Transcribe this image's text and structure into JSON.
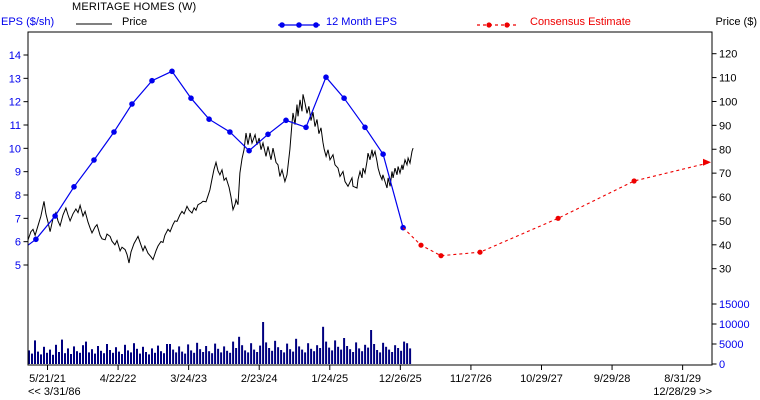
{
  "header": {
    "title": "MERITAGE HOMES (W)",
    "left_axis_label": "EPS ($/sh)",
    "right_axis_label": "Price ($)",
    "legend": [
      {
        "label": "Price",
        "color": "#000000",
        "style": "solid-line"
      },
      {
        "label": "12 Month EPS",
        "color": "#0000EE",
        "style": "line-with-dots"
      },
      {
        "label": "Consensus Estimate",
        "color": "#EE0000",
        "style": "dashed-with-dots"
      }
    ]
  },
  "nav": {
    "left": "<< 3/31/86",
    "right": "12/28/29 >>"
  },
  "colors": {
    "eps_blue": "#0000EE",
    "consensus_red": "#EE0000",
    "price_black": "#000000",
    "volume_navy": "#000080",
    "axis_black": "#000000"
  },
  "chart_data": {
    "type": "line",
    "title": "MERITAGE HOMES (W)",
    "x_axis": {
      "tick_labels": [
        "5/21/21",
        "4/22/22",
        "3/24/23",
        "2/23/24",
        "1/24/25",
        "12/26/25",
        "11/27/26",
        "10/29/27",
        "9/29/28",
        "8/31/29"
      ],
      "unit": "weeks",
      "weeks_per_tick": 48
    },
    "y_left": {
      "label": "EPS ($/sh)",
      "ticks": [
        5,
        6,
        7,
        8,
        9,
        10,
        11,
        12,
        13,
        14
      ],
      "range": [
        5,
        14
      ]
    },
    "y_right_price": {
      "label": "Price ($)",
      "ticks": [
        30,
        40,
        50,
        60,
        70,
        80,
        90,
        100,
        110,
        120
      ],
      "range": [
        30,
        120
      ]
    },
    "y_right_volume": {
      "ticks": [
        0,
        5000,
        10000,
        15000
      ],
      "range": [
        0,
        15000
      ]
    },
    "series": {
      "price": {
        "name": "Price",
        "axis": "price",
        "points": [
          [
            0,
            42
          ],
          [
            2,
            45.5
          ],
          [
            3.4,
            46.5
          ],
          [
            4.8,
            44
          ],
          [
            6.8,
            48
          ],
          [
            8.8,
            52
          ],
          [
            10.9,
            58.2
          ],
          [
            12.2,
            53
          ],
          [
            13.6,
            49.5
          ],
          [
            15,
            45.5
          ],
          [
            17,
            51
          ],
          [
            19,
            53.5
          ],
          [
            20.4,
            50
          ],
          [
            21.8,
            48
          ],
          [
            23.8,
            52.5
          ],
          [
            25.8,
            55.4
          ],
          [
            27.2,
            52.5
          ],
          [
            28.6,
            50
          ],
          [
            30.6,
            53
          ],
          [
            32.6,
            55
          ],
          [
            34,
            53.5
          ],
          [
            35.4,
            56.5
          ],
          [
            37.4,
            52
          ],
          [
            38.8,
            54
          ],
          [
            40.8,
            49.5
          ],
          [
            42.2,
            47
          ],
          [
            43.5,
            45
          ],
          [
            45.6,
            47.5
          ],
          [
            46.9,
            48.4
          ],
          [
            49,
            44
          ],
          [
            50.3,
            42.5
          ],
          [
            52.4,
            42.1
          ],
          [
            53.7,
            44.5
          ],
          [
            55.8,
            43.5
          ],
          [
            57.1,
            41.5
          ],
          [
            59.1,
            40
          ],
          [
            60.5,
            41.8
          ],
          [
            62.6,
            37.5
          ],
          [
            63.9,
            39
          ],
          [
            66,
            38
          ],
          [
            67.3,
            36
          ],
          [
            68.7,
            32.4
          ],
          [
            70,
            37
          ],
          [
            72.1,
            40.5
          ],
          [
            73.4,
            42
          ],
          [
            74.8,
            43.5
          ],
          [
            76.2,
            41
          ],
          [
            78.2,
            37.5
          ],
          [
            79.5,
            39.5
          ],
          [
            81.6,
            36.5
          ],
          [
            83.6,
            35
          ],
          [
            85,
            33.8
          ],
          [
            87,
            37.5
          ],
          [
            88.4,
            39.5
          ],
          [
            90.4,
            41.4
          ],
          [
            91.8,
            41
          ],
          [
            93.1,
            44
          ],
          [
            95.2,
            46.5
          ],
          [
            96.6,
            45.5
          ],
          [
            98.6,
            48.5
          ],
          [
            99.9,
            50
          ],
          [
            101.3,
            49.8
          ],
          [
            103.3,
            52.5
          ],
          [
            104.7,
            54
          ],
          [
            106.1,
            53
          ],
          [
            108.1,
            56.1
          ],
          [
            109.5,
            54.5
          ],
          [
            111.5,
            53.3
          ],
          [
            112.9,
            55.5
          ],
          [
            114.2,
            54.5
          ],
          [
            115.6,
            56.8
          ],
          [
            117.6,
            57.5
          ],
          [
            119,
            58.2
          ],
          [
            121,
            58
          ],
          [
            122.4,
            60.5
          ],
          [
            123.7,
            63
          ],
          [
            125.1,
            67.5
          ],
          [
            126.4,
            71.4
          ],
          [
            127.8,
            74.5
          ],
          [
            129.2,
            71
          ],
          [
            130.5,
            69.3
          ],
          [
            131.9,
            71.4
          ],
          [
            133.3,
            67
          ],
          [
            134.7,
            68
          ],
          [
            136.7,
            64
          ],
          [
            138,
            60
          ],
          [
            139.4,
            54.7
          ],
          [
            140.8,
            57
          ],
          [
            141.4,
            58.9
          ],
          [
            142.8,
            56.8
          ],
          [
            144.1,
            70
          ],
          [
            145.5,
            76
          ],
          [
            146.9,
            80
          ],
          [
            148.2,
            86.8
          ],
          [
            149.6,
            81.9
          ],
          [
            151,
            86.8
          ],
          [
            152.3,
            82.6
          ],
          [
            154.4,
            86.1
          ],
          [
            155.7,
            81.9
          ],
          [
            157.1,
            84.7
          ],
          [
            158.4,
            79.8
          ],
          [
            159.8,
            82.6
          ],
          [
            161.8,
            77
          ],
          [
            163.2,
            81.2
          ],
          [
            165.2,
            75.6
          ],
          [
            166.6,
            80.5
          ],
          [
            168.6,
            74.5
          ],
          [
            170,
            73.5
          ],
          [
            171.3,
            68.6
          ],
          [
            172.7,
            71.4
          ],
          [
            174.7,
            66.5
          ],
          [
            176.1,
            69.3
          ],
          [
            178.1,
            80
          ],
          [
            179.5,
            91
          ],
          [
            180.2,
            95.2
          ],
          [
            181.5,
            90.3
          ],
          [
            182.9,
            98.7
          ],
          [
            183.6,
            93.8
          ],
          [
            184.9,
            100.7
          ],
          [
            186.3,
            95.9
          ],
          [
            187,
            103
          ],
          [
            188.3,
            99.3
          ],
          [
            189.7,
            95
          ],
          [
            191,
            98
          ],
          [
            192.4,
            92
          ],
          [
            193.8,
            95.5
          ],
          [
            195.1,
            89.5
          ],
          [
            196.5,
            92.5
          ],
          [
            197.8,
            86.5
          ],
          [
            199.2,
            89
          ],
          [
            200.5,
            83
          ],
          [
            201.4,
            80
          ],
          [
            202.7,
            77
          ],
          [
            204,
            79.8
          ],
          [
            205.3,
            75.6
          ],
          [
            207.4,
            77.7
          ],
          [
            208.7,
            73.5
          ],
          [
            210.8,
            72.1
          ],
          [
            212.1,
            68.6
          ],
          [
            214.2,
            70.7
          ],
          [
            215.5,
            66.5
          ],
          [
            217.6,
            64.5
          ],
          [
            220.3,
            68
          ],
          [
            221,
            64.5
          ],
          [
            223.7,
            63.8
          ],
          [
            224.4,
            67.3
          ],
          [
            225.7,
            70.7
          ],
          [
            227.1,
            68
          ],
          [
            227.8,
            72.1
          ],
          [
            229.1,
            70
          ],
          [
            230.5,
            74.9
          ],
          [
            231.2,
            78.4
          ],
          [
            232.5,
            75.6
          ],
          [
            233.9,
            79.8
          ],
          [
            234.6,
            77
          ],
          [
            235.9,
            79.1
          ],
          [
            237.3,
            74.9
          ],
          [
            238,
            72.1
          ],
          [
            239.3,
            69.3
          ],
          [
            240.7,
            67.3
          ],
          [
            241.3,
            69.3
          ],
          [
            242.7,
            66.5
          ],
          [
            244.1,
            63.8
          ],
          [
            244.8,
            68
          ],
          [
            246.2,
            64.5
          ],
          [
            247.5,
            70.7
          ],
          [
            248.2,
            68
          ],
          [
            249.5,
            72.1
          ],
          [
            250.9,
            69.3
          ],
          [
            251.6,
            72.8
          ],
          [
            252.9,
            70
          ],
          [
            254.3,
            73.5
          ],
          [
            254.9,
            71.4
          ],
          [
            256.3,
            75.6
          ],
          [
            257.7,
            73.5
          ],
          [
            258.4,
            76.3
          ],
          [
            259.7,
            74.2
          ],
          [
            261.1,
            79.1
          ],
          [
            261.8,
            80.5
          ]
        ]
      },
      "eps": {
        "name": "12 Month EPS",
        "axis": "eps",
        "lead_in": [
          0,
          5.85
        ],
        "points": [
          [
            5.4,
            6.1
          ],
          [
            18.4,
            7.1
          ],
          [
            31.3,
            8.35
          ],
          [
            44.9,
            9.5
          ],
          [
            58.5,
            10.7
          ],
          [
            70.7,
            11.9
          ],
          [
            84.3,
            12.9
          ],
          [
            97.9,
            13.3
          ],
          [
            110.8,
            12.15
          ],
          [
            123.1,
            11.25
          ],
          [
            137.3,
            10.7
          ],
          [
            150.3,
            9.9
          ],
          [
            163.2,
            10.6
          ],
          [
            175.4,
            11.2
          ],
          [
            189,
            10.9
          ],
          [
            202.6,
            13.05
          ],
          [
            214.9,
            12.15
          ],
          [
            229.1,
            10.9
          ],
          [
            241.4,
            9.75
          ],
          [
            255,
            6.6
          ]
        ]
      },
      "consensus": {
        "name": "Consensus Estimate",
        "axis": "eps",
        "line_points": [
          [
            255,
            6.6
          ],
          [
            267.2,
            5.85
          ],
          [
            280.8,
            5.4
          ],
          [
            307.3,
            5.55
          ],
          [
            360.4,
            7.0
          ],
          [
            412.1,
            8.6
          ],
          [
            464.4,
            9.4
          ]
        ],
        "marker_points": [
          [
            267.2,
            5.85
          ],
          [
            280.8,
            5.4
          ],
          [
            307.3,
            5.55
          ],
          [
            360.4,
            7.0
          ],
          [
            412.1,
            8.6
          ]
        ],
        "end_arrow": [
          464.4,
          9.4
        ]
      },
      "volume": {
        "name": "Volume",
        "axis": "volume",
        "start_week": 0.7,
        "week_step": 2.04,
        "values": [
          3400,
          2600,
          5900,
          3100,
          2400,
          4300,
          2800,
          3600,
          2300,
          4800,
          3000,
          6100,
          2700,
          3900,
          2500,
          4400,
          3200,
          2800,
          4700,
          5600,
          2900,
          3700,
          2600,
          4500,
          3300,
          2700,
          5000,
          3500,
          2800,
          4200,
          3100,
          2500,
          4800,
          3400,
          2900,
          5200,
          3800,
          2600,
          4300,
          3000,
          2400,
          3900,
          2800,
          4600,
          3200,
          2700,
          5000,
          5000,
          3600,
          2900,
          4400,
          3100,
          2600,
          4900,
          3400,
          2800,
          5300,
          3700,
          3000,
          4500,
          3200,
          2700,
          5100,
          3800,
          2900,
          4400,
          3300,
          2800,
          5600,
          4000,
          6800,
          4700,
          3400,
          2900,
          5200,
          3600,
          3000,
          4600,
          10500,
          5400,
          4000,
          3300,
          5800,
          4200,
          3500,
          2900,
          5100,
          3700,
          3100,
          6300,
          4400,
          3600,
          2900,
          5200,
          3800,
          3200,
          4700,
          4000,
          9300,
          5600,
          4100,
          3400,
          5900,
          4300,
          3600,
          6500,
          4500,
          3700,
          3000,
          5400,
          3900,
          3200,
          4800,
          4100,
          8500,
          5000,
          3500,
          2900,
          5300,
          4300,
          3600,
          3000,
          4700,
          4000,
          3300,
          5600,
          5200,
          3900
        ]
      }
    }
  }
}
